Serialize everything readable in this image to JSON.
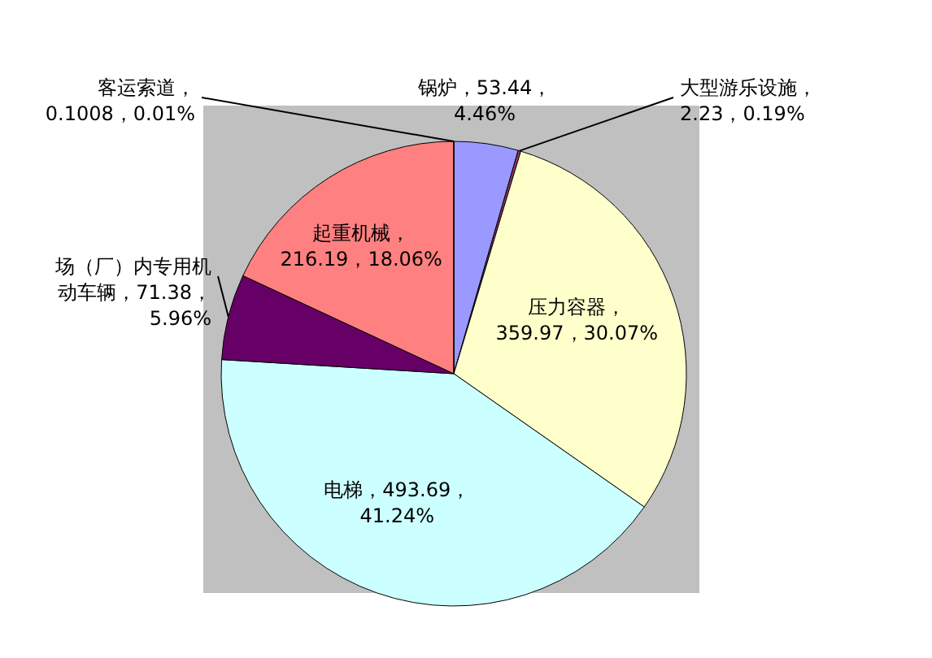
{
  "chart_data": {
    "type": "pie",
    "categories": [
      "锅炉",
      "大型游乐设施",
      "压力容器",
      "电梯",
      "场（厂）内专用机动车辆",
      "起重机械",
      "客运索道"
    ],
    "values": [
      53.44,
      2.23,
      359.97,
      493.69,
      71.38,
      216.19,
      0.1008
    ],
    "colors": [
      "#9999ff",
      "#993366",
      "#ffffcc",
      "#ccffff",
      "#660066",
      "#ff8080",
      "#0066cc"
    ],
    "value_labels": [
      "，53.44，4.46%",
      "，2.23，0.19%",
      "，359.97，30.07%",
      "，493.69，41.24%",
      "，71.38，5.96%",
      "，216.19，18.06%",
      "，0.1008，0.01%"
    ]
  }
}
